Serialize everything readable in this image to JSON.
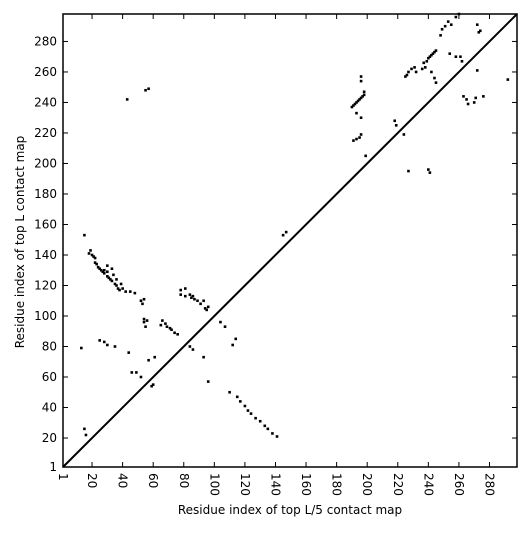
{
  "chart_data": {
    "type": "scatter",
    "title": "",
    "xlabel": "Residue index of top L/5 contact map",
    "ylabel": "Residue index of top L contact map",
    "xlim": [
      1,
      298
    ],
    "ylim": [
      1,
      298
    ],
    "x_ticks": [
      1,
      20,
      40,
      60,
      80,
      100,
      120,
      140,
      160,
      180,
      200,
      220,
      240,
      260,
      280
    ],
    "y_ticks": [
      1,
      20,
      40,
      60,
      80,
      100,
      120,
      140,
      160,
      180,
      200,
      220,
      240,
      260,
      280
    ],
    "x_tick_labels": [
      "1",
      "20",
      "40",
      "60",
      "80",
      "100",
      "120",
      "140",
      "160",
      "180",
      "200",
      "220",
      "240",
      "260",
      "280"
    ],
    "y_tick_labels": [
      "1",
      "20",
      "40",
      "60",
      "80",
      "100",
      "120",
      "140",
      "160",
      "180",
      "200",
      "220",
      "240",
      "260",
      "280"
    ],
    "diagonal_line": {
      "from": [
        1,
        1
      ],
      "to": [
        298,
        298
      ]
    },
    "grid": false,
    "legend": "none",
    "marker_color": "#000000",
    "series": [
      {
        "points": [
          [
            15,
            153
          ],
          [
            18,
            141
          ],
          [
            19,
            143
          ],
          [
            20,
            140
          ],
          [
            21,
            139
          ],
          [
            22,
            138
          ],
          [
            22,
            135
          ],
          [
            23,
            134
          ],
          [
            24,
            132
          ],
          [
            25,
            131
          ],
          [
            26,
            130
          ],
          [
            27,
            129
          ],
          [
            28,
            128
          ],
          [
            30,
            126
          ],
          [
            31,
            125
          ],
          [
            32,
            124
          ],
          [
            33,
            123
          ],
          [
            35,
            121
          ],
          [
            36,
            120
          ],
          [
            37,
            118
          ],
          [
            38,
            117
          ],
          [
            28,
            130
          ],
          [
            30,
            129
          ],
          [
            30,
            133
          ],
          [
            33,
            131
          ],
          [
            34,
            127
          ],
          [
            36,
            124
          ],
          [
            39,
            121
          ],
          [
            40,
            118
          ],
          [
            42,
            116
          ],
          [
            45,
            116
          ],
          [
            48,
            115
          ],
          [
            52,
            110
          ],
          [
            53,
            108
          ],
          [
            54,
            111
          ],
          [
            54,
            98
          ],
          [
            54,
            96
          ],
          [
            56,
            97
          ],
          [
            55,
            93
          ],
          [
            57,
            71
          ],
          [
            61,
            73
          ],
          [
            59,
            54
          ],
          [
            66,
            97
          ],
          [
            65,
            94
          ],
          [
            68,
            95
          ],
          [
            69,
            93
          ],
          [
            71,
            92
          ],
          [
            72,
            91
          ],
          [
            74,
            89
          ],
          [
            76,
            88
          ],
          [
            78,
            117
          ],
          [
            78,
            114
          ],
          [
            81,
            118
          ],
          [
            81,
            113
          ],
          [
            84,
            114
          ],
          [
            85,
            112
          ],
          [
            86,
            113
          ],
          [
            87,
            111
          ],
          [
            89,
            110
          ],
          [
            91,
            108
          ],
          [
            93,
            110
          ],
          [
            94,
            105
          ],
          [
            95,
            104
          ],
          [
            96,
            106
          ],
          [
            96,
            57
          ],
          [
            93,
            73
          ],
          [
            13,
            79
          ],
          [
            15,
            26
          ],
          [
            16,
            22
          ],
          [
            25,
            84
          ],
          [
            28,
            83
          ],
          [
            30,
            81
          ],
          [
            35,
            80
          ],
          [
            44,
            76
          ],
          [
            46,
            63
          ],
          [
            49,
            63
          ],
          [
            52,
            60
          ],
          [
            60,
            55
          ],
          [
            84,
            80
          ],
          [
            86,
            78
          ],
          [
            104,
            96
          ],
          [
            107,
            93
          ],
          [
            112,
            81
          ],
          [
            114,
            85
          ],
          [
            110,
            50
          ],
          [
            115,
            47
          ],
          [
            117,
            44
          ],
          [
            120,
            41
          ],
          [
            122,
            38
          ],
          [
            124,
            36
          ],
          [
            127,
            33
          ],
          [
            130,
            31
          ],
          [
            133,
            28
          ],
          [
            135,
            26
          ],
          [
            138,
            23
          ],
          [
            141,
            21
          ],
          [
            145,
            153
          ],
          [
            147,
            155
          ],
          [
            43,
            242
          ],
          [
            55,
            248
          ],
          [
            57,
            249
          ],
          [
            190,
            237
          ],
          [
            191,
            238
          ],
          [
            192,
            239
          ],
          [
            193,
            240
          ],
          [
            194,
            241
          ],
          [
            195,
            242
          ],
          [
            196,
            243
          ],
          [
            197,
            244
          ],
          [
            198,
            245
          ],
          [
            198,
            247
          ],
          [
            196,
            254
          ],
          [
            196,
            257
          ],
          [
            193,
            233
          ],
          [
            196,
            230
          ],
          [
            191,
            215
          ],
          [
            193,
            216
          ],
          [
            195,
            217
          ],
          [
            196,
            219
          ],
          [
            199,
            205
          ],
          [
            218,
            228
          ],
          [
            219,
            225
          ],
          [
            224,
            219
          ],
          [
            225,
            257
          ],
          [
            226,
            258
          ],
          [
            227,
            260
          ],
          [
            229,
            262
          ],
          [
            231,
            263
          ],
          [
            232,
            260
          ],
          [
            236,
            262
          ],
          [
            238,
            263
          ],
          [
            237,
            266
          ],
          [
            239,
            267
          ],
          [
            240,
            269
          ],
          [
            241,
            270
          ],
          [
            242,
            271
          ],
          [
            243,
            272
          ],
          [
            244,
            273
          ],
          [
            245,
            274
          ],
          [
            242,
            260
          ],
          [
            244,
            256
          ],
          [
            245,
            253
          ],
          [
            240,
            196
          ],
          [
            241,
            194
          ],
          [
            227,
            195
          ],
          [
            248,
            284
          ],
          [
            249,
            288
          ],
          [
            251,
            290
          ],
          [
            253,
            293
          ],
          [
            255,
            291
          ],
          [
            258,
            296
          ],
          [
            260,
            298
          ],
          [
            254,
            272
          ],
          [
            258,
            270
          ],
          [
            261,
            270
          ],
          [
            262,
            267
          ],
          [
            263,
            244
          ],
          [
            265,
            242
          ],
          [
            266,
            239
          ],
          [
            270,
            240
          ],
          [
            271,
            243
          ],
          [
            272,
            261
          ],
          [
            274,
            287
          ],
          [
            276,
            244
          ],
          [
            272,
            291
          ],
          [
            273,
            286
          ],
          [
            292,
            255
          ]
        ]
      }
    ]
  }
}
